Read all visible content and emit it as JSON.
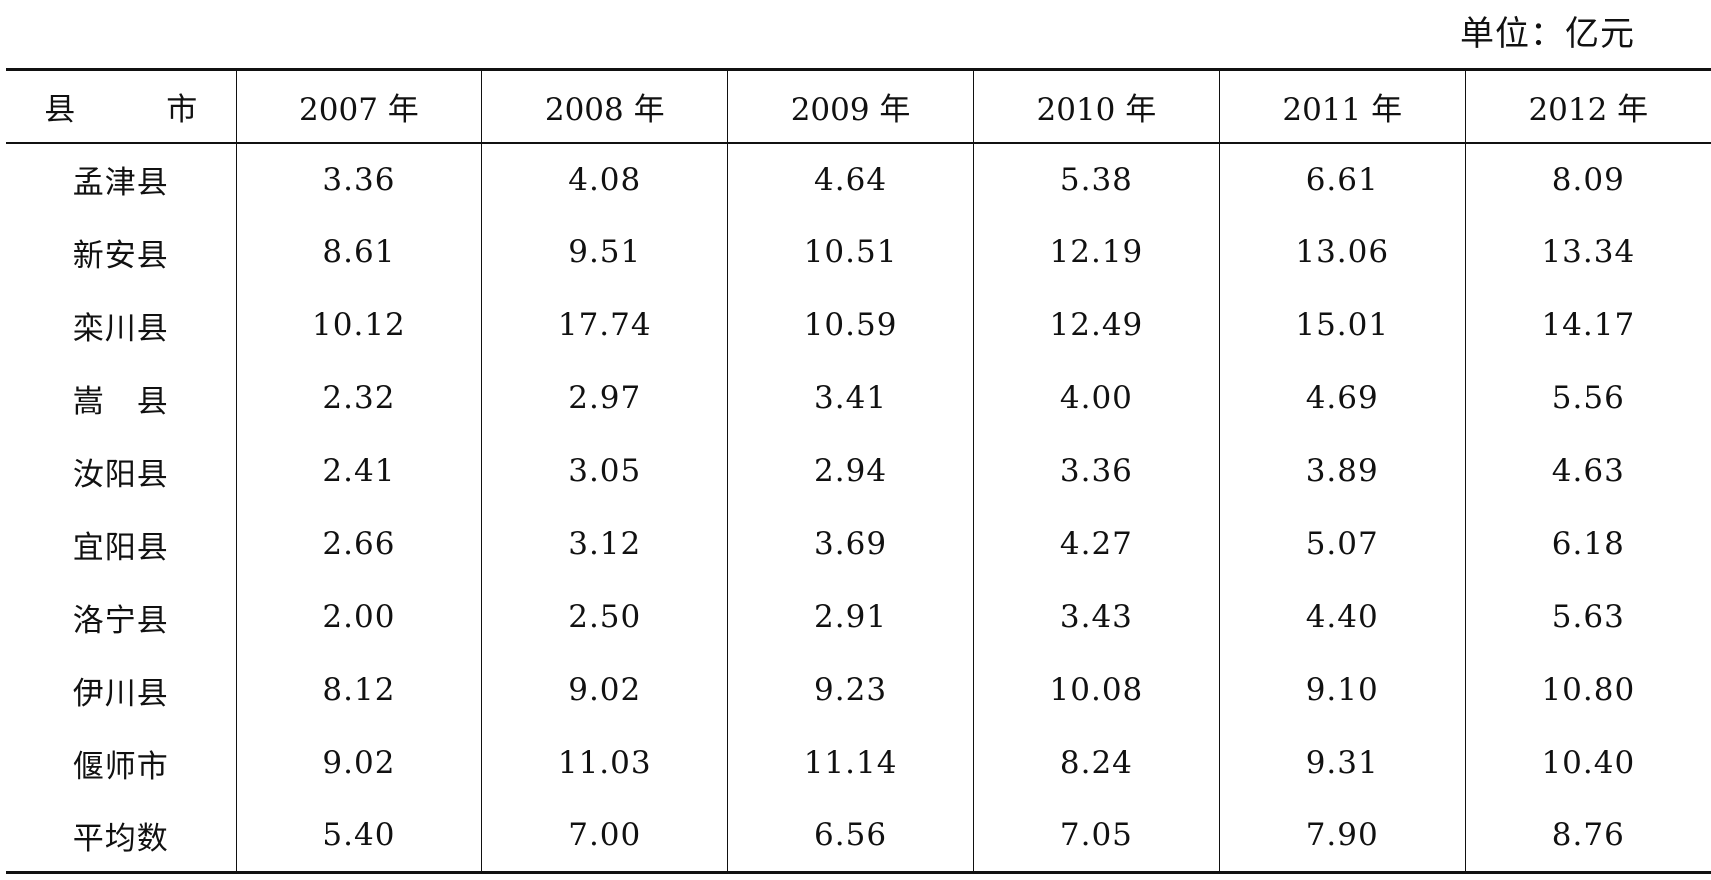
{
  "unit_label": "单位：亿元",
  "table": {
    "headers": [
      "县　市",
      "2007 年",
      "2008 年",
      "2009 年",
      "2010 年",
      "2011 年",
      "2012 年"
    ],
    "rows": [
      [
        "孟津县",
        "3.36",
        "4.08",
        "4.64",
        "5.38",
        "6.61",
        "8.09"
      ],
      [
        "新安县",
        "8.61",
        "9.51",
        "10.51",
        "12.19",
        "13.06",
        "13.34"
      ],
      [
        "栾川县",
        "10.12",
        "17.74",
        "10.59",
        "12.49",
        "15.01",
        "14.17"
      ],
      [
        "嵩　县",
        "2.32",
        "2.97",
        "3.41",
        "4.00",
        "4.69",
        "5.56"
      ],
      [
        "汝阳县",
        "2.41",
        "3.05",
        "2.94",
        "3.36",
        "3.89",
        "4.63"
      ],
      [
        "宜阳县",
        "2.66",
        "3.12",
        "3.69",
        "4.27",
        "5.07",
        "6.18"
      ],
      [
        "洛宁县",
        "2.00",
        "2.50",
        "2.91",
        "3.43",
        "4.40",
        "5.63"
      ],
      [
        "伊川县",
        "8.12",
        "9.02",
        "9.23",
        "10.08",
        "9.10",
        "10.80"
      ],
      [
        "偃师市",
        "9.02",
        "11.03",
        "11.14",
        "8.24",
        "9.31",
        "10.40"
      ],
      [
        "平均数",
        "5.40",
        "7.00",
        "6.56",
        "7.05",
        "7.90",
        "8.76"
      ]
    ]
  }
}
